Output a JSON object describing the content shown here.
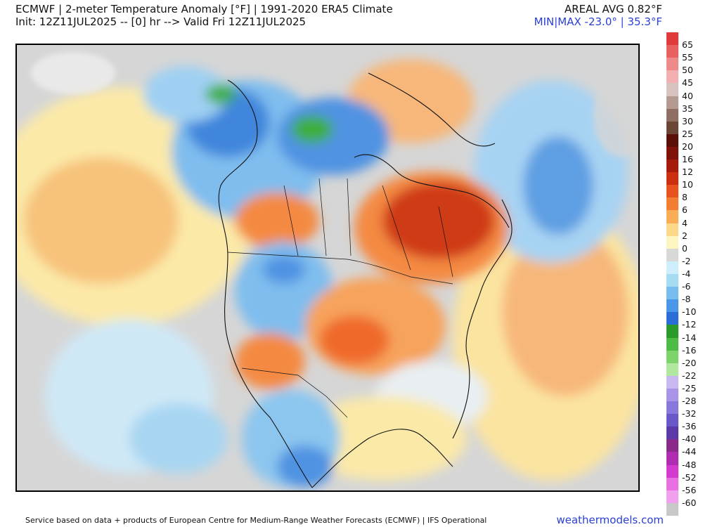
{
  "header": {
    "line1": "ECMWF | 2-meter Temperature Anomaly [°F] | 1991-2020 ERA5 Climate",
    "line2": "Init: 12Z11JUL2025 -- [0] hr --> Valid Fri 12Z11JUL2025",
    "areal_avg": "AREAL AVG 0.82°F",
    "minmax": "MIN|MAX -23.0° | 35.3°F"
  },
  "colorbar": {
    "ticks": [
      "65",
      "55",
      "50",
      "45",
      "40",
      "35",
      "30",
      "25",
      "20",
      "16",
      "12",
      "10",
      "8",
      "6",
      "4",
      "2",
      "0",
      "-2",
      "-4",
      "-6",
      "-8",
      "-10",
      "-12",
      "-14",
      "-16",
      "-20",
      "-22",
      "-25",
      "-28",
      "-32",
      "-36",
      "-40",
      "-44",
      "-48",
      "-52",
      "-56",
      "-60"
    ],
    "colors": [
      "#e03a3a",
      "#e86060",
      "#ef8a8a",
      "#f4b0b0",
      "#d8c2bd",
      "#b59a92",
      "#8f6f64",
      "#6b4535",
      "#5a0f08",
      "#7e1208",
      "#a51a0a",
      "#cc2e10",
      "#e8521c",
      "#f37e32",
      "#f9ad55",
      "#fcd88a",
      "#fdf6c0",
      "#d8d8d8",
      "#cdeefa",
      "#a6dcf3",
      "#78bdf0",
      "#4a96e8",
      "#2a6dd8",
      "#2a9a2a",
      "#4cbc44",
      "#7cd46a",
      "#b0e8a0",
      "#c8b8f0",
      "#a894e8",
      "#8878dc",
      "#6a58c8",
      "#5a3aa8",
      "#8a2a8a",
      "#b02cb0",
      "#d43ad0",
      "#e870e0",
      "#f0a0ec",
      "#c8c8c8"
    ]
  },
  "map": {
    "ocean_warm": "#fbe9a8",
    "cold": "#7fbdee",
    "very_cold": "#3f86dc",
    "hot": "#cf3a14",
    "warm": "#f48a43",
    "neutral": "#d6d6d6",
    "green": "#3fae3f"
  },
  "footer": {
    "credit": "Service based on data + products of European Centre for Medium-Range Weather Forecasts (ECMWF) | IFS Operational",
    "site": "weathermodels.com"
  }
}
